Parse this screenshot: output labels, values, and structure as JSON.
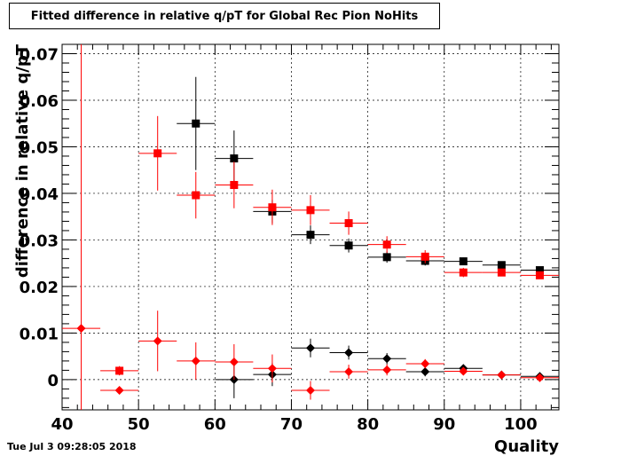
{
  "title": "Fitted difference in relative q/pT for Global Rec Pion NoHits",
  "timestamp": "Tue Jul  3 09:28:05 2018",
  "chart_data": {
    "type": "scatter",
    "xlabel": "Quality",
    "ylabel": "difference in relative q/pT",
    "xlim": [
      40,
      105
    ],
    "ylim": [
      -0.0065,
      0.072
    ],
    "x_ticks": [
      "40",
      "50",
      "60",
      "70",
      "80",
      "90",
      "100"
    ],
    "y_ticks": [
      "0",
      "0.01",
      "0.02",
      "0.03",
      "0.04",
      "0.05",
      "0.06",
      "0.07"
    ],
    "grid": true,
    "series": [
      {
        "marker": "square",
        "color": "#000000",
        "points": [
          {
            "x": 57.5,
            "y": 0.055,
            "xerr": 2.5,
            "yerr": 0.01
          },
          {
            "x": 62.5,
            "y": 0.0475,
            "xerr": 2.5,
            "yerr": 0.006
          },
          {
            "x": 67.5,
            "y": 0.0361,
            "xerr": 2.5,
            "yerr": 0.0025
          },
          {
            "x": 72.5,
            "y": 0.0311,
            "xerr": 2.5,
            "yerr": 0.002
          },
          {
            "x": 77.5,
            "y": 0.0288,
            "xerr": 2.5,
            "yerr": 0.0015
          },
          {
            "x": 82.5,
            "y": 0.0263,
            "xerr": 2.5,
            "yerr": 0.0012
          },
          {
            "x": 87.5,
            "y": 0.0255,
            "xerr": 2.5,
            "yerr": 0.001
          },
          {
            "x": 92.5,
            "y": 0.0254,
            "xerr": 2.5,
            "yerr": 0.0008
          },
          {
            "x": 97.5,
            "y": 0.0246,
            "xerr": 2.5,
            "yerr": 0.0007
          },
          {
            "x": 102.5,
            "y": 0.0235,
            "xerr": 2.5,
            "yerr": 0.0006
          }
        ]
      },
      {
        "marker": "square",
        "color": "#ff0000",
        "points": [
          {
            "x": 47.5,
            "y": 0.0019,
            "xerr": 2.5,
            "yerr": 0.001
          },
          {
            "x": 52.5,
            "y": 0.0486,
            "xerr": 2.5,
            "yerr": 0.008
          },
          {
            "x": 57.5,
            "y": 0.0396,
            "xerr": 2.5,
            "yerr": 0.005
          },
          {
            "x": 62.5,
            "y": 0.0418,
            "xerr": 2.5,
            "yerr": 0.005
          },
          {
            "x": 67.5,
            "y": 0.037,
            "xerr": 2.5,
            "yerr": 0.0038
          },
          {
            "x": 72.5,
            "y": 0.0364,
            "xerr": 2.5,
            "yerr": 0.0032
          },
          {
            "x": 77.5,
            "y": 0.0336,
            "xerr": 2.5,
            "yerr": 0.0025
          },
          {
            "x": 82.5,
            "y": 0.029,
            "xerr": 2.5,
            "yerr": 0.0018
          },
          {
            "x": 87.5,
            "y": 0.0264,
            "xerr": 2.5,
            "yerr": 0.0014
          },
          {
            "x": 92.5,
            "y": 0.023,
            "xerr": 2.5,
            "yerr": 0.001
          },
          {
            "x": 97.5,
            "y": 0.023,
            "xerr": 2.5,
            "yerr": 0.0008
          },
          {
            "x": 102.5,
            "y": 0.0224,
            "xerr": 2.5,
            "yerr": 0.0007
          }
        ]
      },
      {
        "marker": "diamond",
        "color": "#000000",
        "points": [
          {
            "x": 62.5,
            "y": 0.0,
            "xerr": 2.5,
            "yerr": 0.004
          },
          {
            "x": 67.5,
            "y": 0.0011,
            "xerr": 2.5,
            "yerr": 0.0025
          },
          {
            "x": 72.5,
            "y": 0.0068,
            "xerr": 2.5,
            "yerr": 0.002
          },
          {
            "x": 77.5,
            "y": 0.0058,
            "xerr": 2.5,
            "yerr": 0.0015
          },
          {
            "x": 82.5,
            "y": 0.0045,
            "xerr": 2.5,
            "yerr": 0.0012
          },
          {
            "x": 87.5,
            "y": 0.0017,
            "xerr": 2.5,
            "yerr": 0.001
          },
          {
            "x": 92.5,
            "y": 0.0024,
            "xerr": 2.5,
            "yerr": 0.0008
          },
          {
            "x": 97.5,
            "y": 0.001,
            "xerr": 2.5,
            "yerr": 0.0006
          },
          {
            "x": 102.5,
            "y": 0.0007,
            "xerr": 2.5,
            "yerr": 0.0005
          }
        ]
      },
      {
        "marker": "diamond",
        "color": "#ff0000",
        "points": [
          {
            "x": 42.5,
            "y": 0.011,
            "xerr": 2.5,
            "yerr": 0.07
          },
          {
            "x": 47.5,
            "y": -0.0023,
            "xerr": 2.5,
            "yerr": 0.0008
          },
          {
            "x": 52.5,
            "y": 0.0083,
            "xerr": 2.5,
            "yerr": 0.0065
          },
          {
            "x": 57.5,
            "y": 0.004,
            "xerr": 2.5,
            "yerr": 0.004
          },
          {
            "x": 62.5,
            "y": 0.0038,
            "xerr": 2.5,
            "yerr": 0.0038
          },
          {
            "x": 67.5,
            "y": 0.0024,
            "xerr": 2.5,
            "yerr": 0.003
          },
          {
            "x": 72.5,
            "y": -0.0023,
            "xerr": 2.5,
            "yerr": 0.002
          },
          {
            "x": 77.5,
            "y": 0.0017,
            "xerr": 2.5,
            "yerr": 0.0015
          },
          {
            "x": 82.5,
            "y": 0.0021,
            "xerr": 2.5,
            "yerr": 0.0012
          },
          {
            "x": 87.5,
            "y": 0.0034,
            "xerr": 2.5,
            "yerr": 0.001
          },
          {
            "x": 92.5,
            "y": 0.0018,
            "xerr": 2.5,
            "yerr": 0.0008
          },
          {
            "x": 97.5,
            "y": 0.001,
            "xerr": 2.5,
            "yerr": 0.0006
          },
          {
            "x": 102.5,
            "y": 0.0004,
            "xerr": 2.5,
            "yerr": 0.0005
          }
        ]
      }
    ]
  }
}
